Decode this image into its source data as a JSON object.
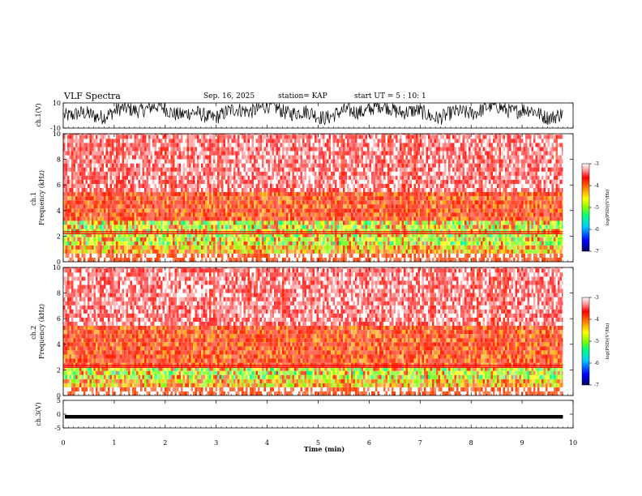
{
  "header": {
    "title": "VLF Spectra",
    "date": "Sep. 16, 2025",
    "station": "station= KAP",
    "start": "start  UT =   5 : 10: 1"
  },
  "chart_data": [
    {
      "id": "ch1-waveform",
      "type": "line",
      "ylabel": "ch.1(V)",
      "ylim": [
        -10,
        10
      ],
      "yticks": [
        "10",
        "-10"
      ],
      "xlim": [
        0,
        10
      ],
      "description_series": "dense waveform oscillating roughly between -7 and +10 V over 0 to 9.8 min"
    },
    {
      "id": "ch1-spectrogram",
      "type": "heatmap",
      "ylabel": "ch.1\nFrequency (kHz)",
      "ylim": [
        0,
        10
      ],
      "yticks": [
        "0",
        "2",
        "4",
        "6",
        "8",
        "10"
      ],
      "xlim": [
        0,
        10
      ],
      "data_end_min": 9.8,
      "colorbar": {
        "label": "log(PSD)(V²/Hz)",
        "range": [
          -7,
          -3
        ],
        "ticks": [
          "-3",
          "-4",
          "-5",
          "-6",
          "-7"
        ]
      }
    },
    {
      "id": "ch2-spectrogram",
      "type": "heatmap",
      "ylabel": "ch.2\nFrequency (kHz)",
      "ylim": [
        0,
        10
      ],
      "yticks": [
        "0",
        "2",
        "4",
        "6",
        "8",
        "10"
      ],
      "xlim": [
        0,
        10
      ],
      "data_end_min": 9.8,
      "colorbar": {
        "label": "log(PSD)(V²/Hz)",
        "range": [
          -7,
          -3
        ],
        "ticks": [
          "-3",
          "-4",
          "-5",
          "-6",
          "-7"
        ]
      }
    },
    {
      "id": "ch3-waveform",
      "type": "line",
      "ylabel": "ch.3(V)",
      "ylim": [
        -5,
        5
      ],
      "yticks": [
        "5",
        "0",
        "-5"
      ],
      "xlim": [
        0,
        10
      ],
      "xlabel": "Time (min)",
      "xticks": [
        "0",
        "1",
        "2",
        "3",
        "4",
        "5",
        "6",
        "7",
        "8",
        "9",
        "10"
      ],
      "description_series": "near-constant band around -0.8 V from 0 to 9.8 min"
    }
  ],
  "colors": {
    "scale": [
      "#000080",
      "#0000ff",
      "#00c0ff",
      "#00ff80",
      "#80ff00",
      "#ffff00",
      "#ff8000",
      "#ff0000",
      "#ffffff"
    ]
  }
}
